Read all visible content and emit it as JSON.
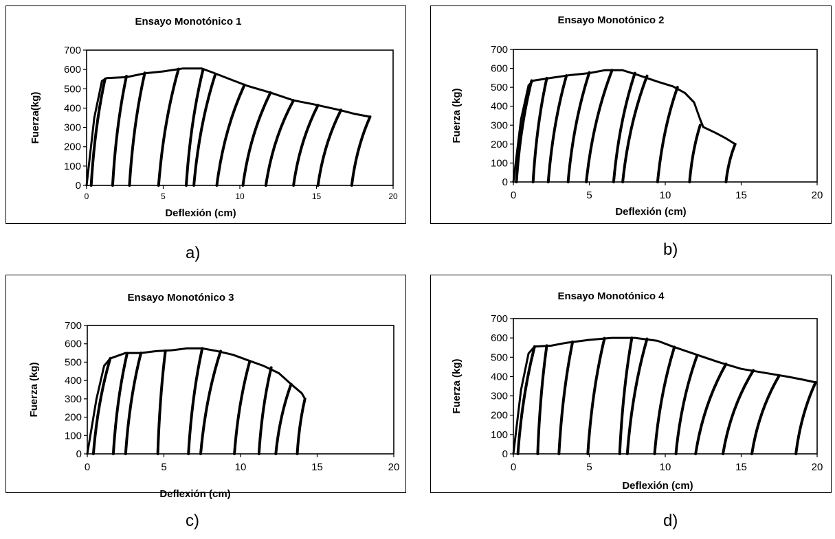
{
  "panels": [
    {
      "caption": "a)"
    },
    {
      "caption": "b)"
    },
    {
      "caption": "c)"
    },
    {
      "caption": "d)"
    }
  ],
  "chart_data": [
    {
      "type": "line",
      "title": "Ensayo Monotónico 1",
      "xlabel": "Deflexión (cm)",
      "ylabel": "Fuerza(kg)",
      "xlim": [
        0,
        20
      ],
      "ylim": [
        0,
        700
      ],
      "xticks": [
        0,
        5,
        10,
        15,
        20
      ],
      "yticks": [
        0,
        100,
        200,
        300,
        400,
        500,
        600,
        700
      ],
      "grid": false,
      "envelope": [
        [
          0,
          0
        ],
        [
          0.5,
          350
        ],
        [
          1.0,
          540
        ],
        [
          1.3,
          555
        ],
        [
          2.6,
          560
        ],
        [
          3.8,
          580
        ],
        [
          5.0,
          590
        ],
        [
          6.3,
          605
        ],
        [
          7.5,
          605
        ],
        [
          8.2,
          585
        ],
        [
          9.5,
          545
        ],
        [
          10.5,
          515
        ],
        [
          12.0,
          480
        ],
        [
          13.5,
          440
        ],
        [
          14.8,
          420
        ],
        [
          16.5,
          390
        ],
        [
          17.5,
          370
        ],
        [
          18.5,
          355
        ]
      ],
      "unload_points": [
        [
          1.2,
          550,
          0.3
        ],
        [
          2.6,
          565,
          1.7
        ],
        [
          3.8,
          582,
          2.8
        ],
        [
          6.0,
          602,
          4.7
        ],
        [
          7.6,
          600,
          6.5
        ],
        [
          8.4,
          575,
          7.0
        ],
        [
          10.3,
          520,
          8.5
        ],
        [
          12.0,
          480,
          10.2
        ],
        [
          13.5,
          440,
          11.7
        ],
        [
          15.1,
          415,
          13.5
        ],
        [
          16.6,
          390,
          15.1
        ],
        [
          18.5,
          355,
          17.3
        ]
      ]
    },
    {
      "type": "line",
      "title": "Ensayo Monotónico 2",
      "xlabel": "Deflexión (cm)",
      "ylabel": "Fuerza (kg)",
      "xlim": [
        0,
        20
      ],
      "ylim": [
        0,
        700
      ],
      "xticks": [
        0,
        5,
        10,
        15,
        20
      ],
      "yticks": [
        0,
        100,
        200,
        300,
        400,
        500,
        600,
        700
      ],
      "grid": false,
      "envelope": [
        [
          0,
          0
        ],
        [
          0.5,
          330
        ],
        [
          1.0,
          510
        ],
        [
          1.3,
          535
        ],
        [
          2.5,
          550
        ],
        [
          3.8,
          565
        ],
        [
          5.0,
          575
        ],
        [
          6.0,
          590
        ],
        [
          7.2,
          590
        ],
        [
          8.2,
          565
        ],
        [
          9.5,
          530
        ],
        [
          10.5,
          505
        ],
        [
          11.3,
          470
        ],
        [
          11.9,
          420
        ],
        [
          12.3,
          330
        ],
        [
          12.5,
          290
        ],
        [
          13.3,
          260
        ],
        [
          14.0,
          230
        ],
        [
          14.6,
          200
        ]
      ],
      "unload_points": [
        [
          1.2,
          535,
          0.2
        ],
        [
          2.2,
          548,
          1.3
        ],
        [
          3.5,
          562,
          2.3
        ],
        [
          5.0,
          578,
          3.6
        ],
        [
          6.5,
          590,
          4.8
        ],
        [
          8.0,
          575,
          6.6
        ],
        [
          8.8,
          560,
          7.2
        ],
        [
          10.8,
          500,
          9.5
        ],
        [
          12.3,
          300,
          11.6
        ],
        [
          14.6,
          200,
          14.0
        ]
      ]
    },
    {
      "type": "line",
      "title": "Ensayo Monotónico 3",
      "xlabel": "Deflexión (cm)",
      "ylabel": "Fuerza (kg)",
      "xlim": [
        0,
        20
      ],
      "ylim": [
        0,
        700
      ],
      "xticks": [
        0,
        5,
        10,
        15,
        20
      ],
      "yticks": [
        0,
        100,
        200,
        300,
        400,
        500,
        600,
        700
      ],
      "grid": false,
      "envelope": [
        [
          0,
          0
        ],
        [
          0.6,
          300
        ],
        [
          1.1,
          480
        ],
        [
          1.5,
          520
        ],
        [
          2.5,
          550
        ],
        [
          3.5,
          550
        ],
        [
          4.5,
          560
        ],
        [
          5.5,
          565
        ],
        [
          6.5,
          575
        ],
        [
          7.5,
          575
        ],
        [
          8.5,
          560
        ],
        [
          9.5,
          540
        ],
        [
          10.5,
          510
        ],
        [
          11.5,
          480
        ],
        [
          12.5,
          440
        ],
        [
          13.3,
          380
        ],
        [
          14.0,
          330
        ],
        [
          14.2,
          300
        ]
      ],
      "unload_points": [
        [
          1.5,
          520,
          0.4
        ],
        [
          2.6,
          548,
          1.7
        ],
        [
          3.5,
          550,
          2.5
        ],
        [
          5.1,
          562,
          4.6
        ],
        [
          7.5,
          575,
          6.6
        ],
        [
          8.7,
          560,
          7.4
        ],
        [
          10.6,
          505,
          9.6
        ],
        [
          12.0,
          470,
          11.2
        ],
        [
          13.3,
          380,
          12.3
        ],
        [
          14.2,
          300,
          13.7
        ]
      ]
    },
    {
      "type": "line",
      "title": "Ensayo Monotónico 4",
      "xlabel": "Deflexión (cm)",
      "ylabel": "Fuerza (kg)",
      "xlim": [
        0,
        20
      ],
      "ylim": [
        0,
        700
      ],
      "xticks": [
        0,
        5,
        10,
        15,
        20
      ],
      "yticks": [
        0,
        100,
        200,
        300,
        400,
        500,
        600,
        700
      ],
      "grid": false,
      "envelope": [
        [
          0,
          0
        ],
        [
          0.5,
          330
        ],
        [
          1.0,
          520
        ],
        [
          1.4,
          555
        ],
        [
          2.5,
          560
        ],
        [
          3.5,
          575
        ],
        [
          5.0,
          590
        ],
        [
          6.5,
          600
        ],
        [
          8.0,
          600
        ],
        [
          9.5,
          585
        ],
        [
          10.5,
          555
        ],
        [
          12.0,
          515
        ],
        [
          13.5,
          475
        ],
        [
          15.0,
          440
        ],
        [
          16.5,
          420
        ],
        [
          18.0,
          400
        ],
        [
          19.0,
          385
        ],
        [
          19.9,
          370
        ]
      ],
      "unload_points": [
        [
          1.4,
          555,
          0.3
        ],
        [
          2.2,
          560,
          1.6
        ],
        [
          3.9,
          580,
          3.0
        ],
        [
          6.0,
          598,
          4.9
        ],
        [
          7.8,
          600,
          7.0
        ],
        [
          8.8,
          595,
          7.5
        ],
        [
          10.6,
          553,
          9.3
        ],
        [
          12.1,
          510,
          10.7
        ],
        [
          14.0,
          465,
          12.0
        ],
        [
          15.8,
          432,
          13.8
        ],
        [
          17.5,
          405,
          15.7
        ],
        [
          19.9,
          370,
          18.6
        ]
      ]
    }
  ]
}
